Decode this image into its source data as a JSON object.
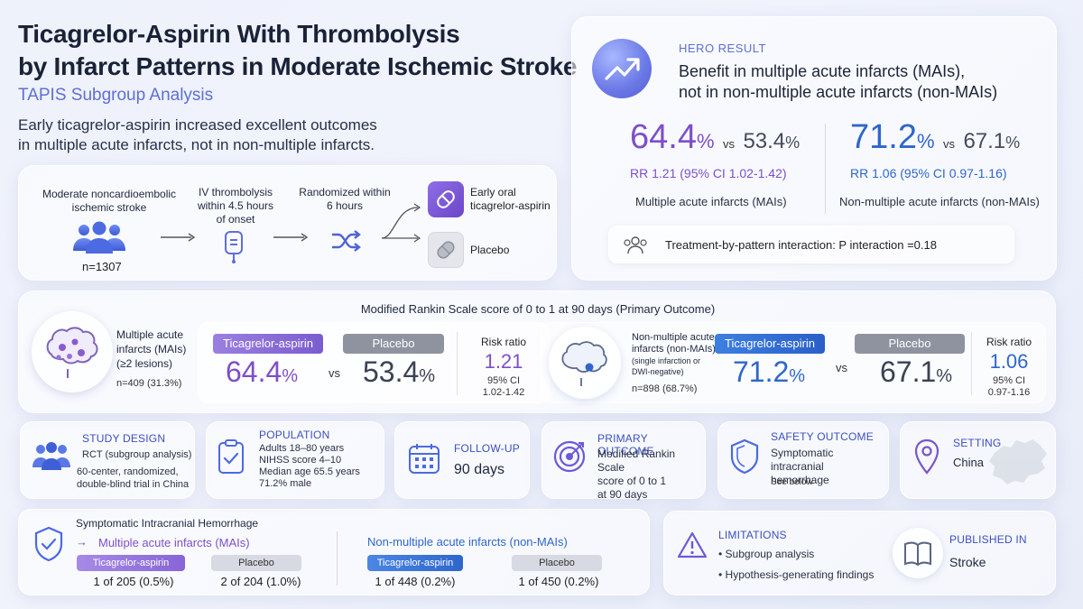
{
  "header": {
    "title_line1": "Ticagrelor-Aspirin With Thrombolysis",
    "title_line2": "by Infarct Patterns in Moderate Ischemic Stroke",
    "subtitle": "TAPIS Subgroup Analysis",
    "lead_line1": "Early ticagrelor-aspirin increased excellent outcomes",
    "lead_line2": "in multiple acute infarcts, not in non-multiple infarcts."
  },
  "flow": {
    "step1_line1": "Moderate noncardioembolic",
    "step1_line2": "ischemic stroke",
    "n": "n=1307",
    "step2_line1": "IV thrombolysis",
    "step2_line2": "within 4.5 hours",
    "step2_line3": "of onset",
    "step3_line1": "Randomized within",
    "step3_line2": "6 hours",
    "arm1_line1": "Early oral",
    "arm1_line2": "ticagrelor-aspirin",
    "arm2": "Placebo"
  },
  "hero": {
    "tag": "HERO RESULT",
    "head_line1": "Benefit in multiple acute infarcts (MAIs),",
    "head_line2": "not in non-multiple acute infarcts (non-MAIs)",
    "mai": {
      "v1": "64.4",
      "v2": "53.4",
      "pct": "%",
      "vs": "vs",
      "rr": "RR 1.21 (95% CI 1.02-1.42)",
      "label": "Multiple acute infarcts (MAIs)"
    },
    "nonmai": {
      "v1": "71.2",
      "v2": "67.1",
      "pct": "%",
      "vs": "vs",
      "rr": "RR 1.06 (95% CI 0.97-1.16)",
      "label": "Non-multiple acute infarcts (non-MAIs)"
    },
    "interaction": "Treatment-by-pattern interaction: P interaction =0.18"
  },
  "primary": {
    "title": "Modified Rankin Scale score of 0 to 1 at 90 days (Primary Outcome)",
    "mai": {
      "name_line1": "Multiple acute",
      "name_line2": "infarcts (MAIs)",
      "name_line3": "(≥2 lesions)",
      "n": "n=409 (31.3%)",
      "arm1": "Ticagrelor-aspirin",
      "arm2": "Placebo",
      "v1": "64.4",
      "v2": "53.4",
      "pct": "%",
      "vs": "vs",
      "rr_label": "Risk ratio",
      "rr": "1.21",
      "ci_label": "95% CI",
      "ci": "1.02-1.42"
    },
    "nonmai": {
      "name_line1": "Non-multiple acute",
      "name_line2": "infarcts (non-MAIs)",
      "name_line3": "(single infarction or",
      "name_line4": "DWI-negative)",
      "n": "n=898 (68.7%)",
      "arm1": "Ticagrelor-aspirin",
      "arm2": "Placebo",
      "v1": "71.2",
      "v2": "67.1",
      "pct": "%",
      "vs": "vs",
      "rr_label": "Risk ratio",
      "rr": "1.06",
      "ci_label": "95% CI",
      "ci": "0.97-1.16"
    }
  },
  "facts": [
    {
      "title": "STUDY DESIGN",
      "lines": [
        "RCT (subgroup analysis)",
        "60-center, randomized,",
        "double-blind trial in China"
      ]
    },
    {
      "title": "POPULATION",
      "lines": [
        "Adults 18–80 years",
        "NIHSS score 4–10",
        "Median age 65.5 years",
        "71.2% male"
      ]
    },
    {
      "title": "FOLLOW-UP",
      "value": "90 days"
    },
    {
      "title": "PRIMARY OUTCOME",
      "lines": [
        "Modified Rankin Scale",
        "score of 0 to 1",
        "at 90 days"
      ]
    },
    {
      "title": "SAFETY OUTCOME",
      "lines": [
        "Symptomatic intracranial",
        "hemorrhage"
      ],
      "note": "See below"
    },
    {
      "title": "SETTING",
      "value": "China"
    }
  ],
  "ich": {
    "title": "Symptomatic Intracranial Hemorrhage",
    "arrow": "→",
    "mai_label": "Multiple acute infarcts (MAIs)",
    "nonmai_label": "Non-multiple acute infarcts (non-MAIs)",
    "mai_arm1": "Ticagrelor-aspirin",
    "mai_arm2": "Placebo",
    "mai_v1": "1 of 205 (0.5%)",
    "mai_v2": "2 of 204 (1.0%)",
    "non_arm1": "Ticagrelor-aspirin",
    "non_arm2": "Placebo",
    "non_v1": "1 of 448 (0.2%)",
    "non_v2": "1 of 450 (0.2%)"
  },
  "limitations": {
    "title": "LIMITATIONS",
    "items": [
      "Subgroup analysis",
      "Hypothesis-generating findings"
    ],
    "bullet": "•"
  },
  "published": {
    "title": "PUBLISHED IN",
    "value": "Stroke"
  },
  "colors": {
    "purple": "#7d4fc9",
    "blue": "#2f66cc",
    "grey": "#3b4252",
    "accent": "#5d6fd6"
  }
}
